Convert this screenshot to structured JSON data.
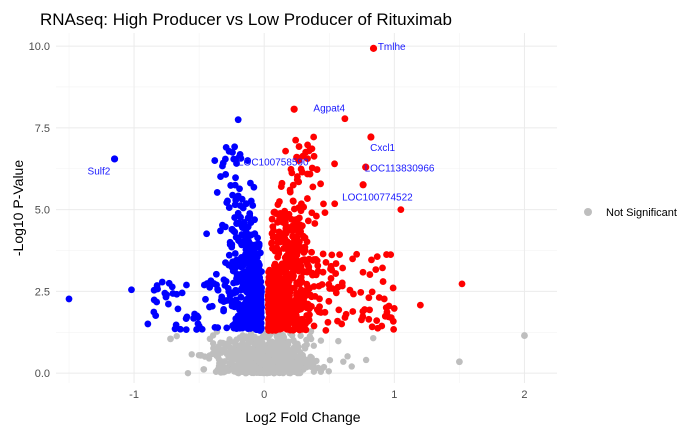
{
  "chart_data": {
    "type": "scatter",
    "title": "RNAseq: High Producer vs Low Producer of Rituximab",
    "xlabel": "Log2 Fold Change",
    "ylabel": "-Log10 P-Value",
    "xlim": [
      -1.6,
      2.25
    ],
    "ylim": [
      -0.3,
      10.4
    ],
    "x_ticks": [
      -1,
      0,
      1,
      2
    ],
    "y_ticks": [
      0.0,
      2.5,
      5.0,
      7.5,
      10.0
    ],
    "y_tick_labels": [
      "0.0",
      "2.5",
      "5.0",
      "7.5",
      "10.0"
    ],
    "grid": true,
    "legend": {
      "position": "right",
      "entries": [
        {
          "label": "Not Significant",
          "color": "#bebebe"
        }
      ]
    },
    "colors": {
      "down": "#0000ff",
      "up": "#ff0000",
      "not_significant": "#bebebe",
      "gene_label": "#1a1aff"
    },
    "thresholds": {
      "p_value_neglog10": 1.3
    },
    "labeled_genes": [
      {
        "label": "Tmlhe",
        "x": 0.84,
        "y": 9.93,
        "color": "#ff0000",
        "label_x": 0.98,
        "label_y": 9.98
      },
      {
        "label": "Agpat4",
        "x": 0.23,
        "y": 8.07,
        "color": "#ff0000",
        "label_x": 0.5,
        "label_y": 8.1
      },
      {
        "label": "Sulf2",
        "x": -1.15,
        "y": 6.55,
        "color": "#0000ff",
        "label_x": -1.27,
        "label_y": 6.18
      },
      {
        "label": "LOC100758590",
        "x": 0.25,
        "y": 6.6,
        "color": "#ff0000",
        "label_x": 0.07,
        "label_y": 6.45
      },
      {
        "label": "Cxcl1",
        "x": 0.82,
        "y": 7.22,
        "color": "#ff0000",
        "label_x": 0.91,
        "label_y": 6.9
      },
      {
        "label": "LOC113830966",
        "x": 0.78,
        "y": 6.3,
        "color": "#ff0000",
        "label_x": 1.04,
        "label_y": 6.28
      },
      {
        "label": "LOC100774522",
        "x": 0.76,
        "y": 5.76,
        "color": "#ff0000",
        "label_x": 0.87,
        "label_y": 5.39
      }
    ],
    "highlight_points": [
      {
        "x": -1.5,
        "y": 2.27,
        "group": "down"
      },
      {
        "x": -1.02,
        "y": 2.55,
        "group": "down"
      },
      {
        "x": -0.2,
        "y": 7.75,
        "group": "down"
      },
      {
        "x": -0.38,
        "y": 6.5,
        "group": "down"
      },
      {
        "x": 0.62,
        "y": 7.78,
        "group": "up"
      },
      {
        "x": 1.05,
        "y": 5.0,
        "group": "up"
      },
      {
        "x": 1.2,
        "y": 2.08,
        "group": "up"
      },
      {
        "x": 1.52,
        "y": 2.73,
        "group": "up"
      },
      {
        "x": 0.38,
        "y": 7.22,
        "group": "up"
      },
      {
        "x": 2.0,
        "y": 1.15,
        "group": "not_significant"
      },
      {
        "x": 1.5,
        "y": 0.35,
        "group": "not_significant"
      },
      {
        "x": -0.72,
        "y": 1.05,
        "group": "not_significant"
      }
    ]
  }
}
